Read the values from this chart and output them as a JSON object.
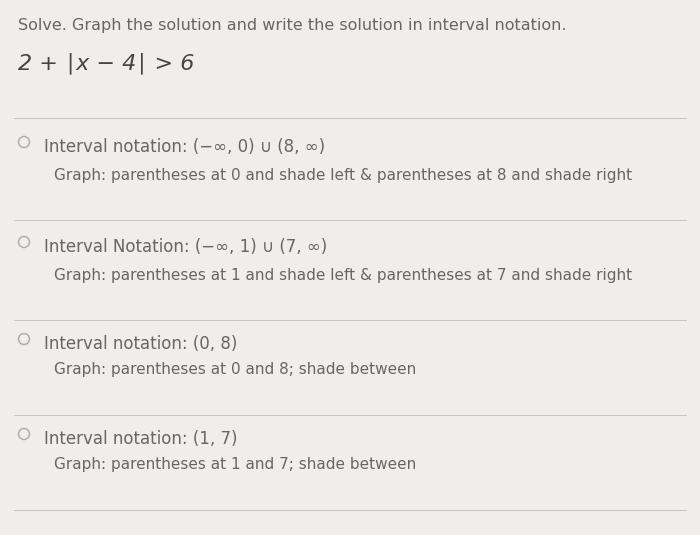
{
  "background_color": "#f0eeeb",
  "title_line1": "Solve. Graph the solution and write the solution in interval notation.",
  "equation": "2 + ∣x − 4∣ > 6",
  "options": [
    {
      "label": "Interval notation: (−∞, 0) ∪ (8, ∞)",
      "sub": "Graph: parentheses at 0 and shade left & parentheses at 8 and shade right"
    },
    {
      "label": "Interval Notation: (−∞, 1) ∪ (7, ∞)",
      "sub": "Graph: parentheses at 1 and shade left & parentheses at 7 and shade right"
    },
    {
      "label": "Interval notation: (0, 8)",
      "sub": "Graph: parentheses at 0 and 8; shade between"
    },
    {
      "label": "Interval notation: (1, 7)",
      "sub": "Graph: parentheses at 1 and 7; shade between"
    }
  ],
  "divider_color": "#c8c5c0",
  "text_color": "#666666",
  "eq_color": "#444444",
  "circle_color": "#b0aea8",
  "title_fontsize": 11.5,
  "equation_fontsize": 16,
  "option_fontsize": 12,
  "sub_fontsize": 11
}
